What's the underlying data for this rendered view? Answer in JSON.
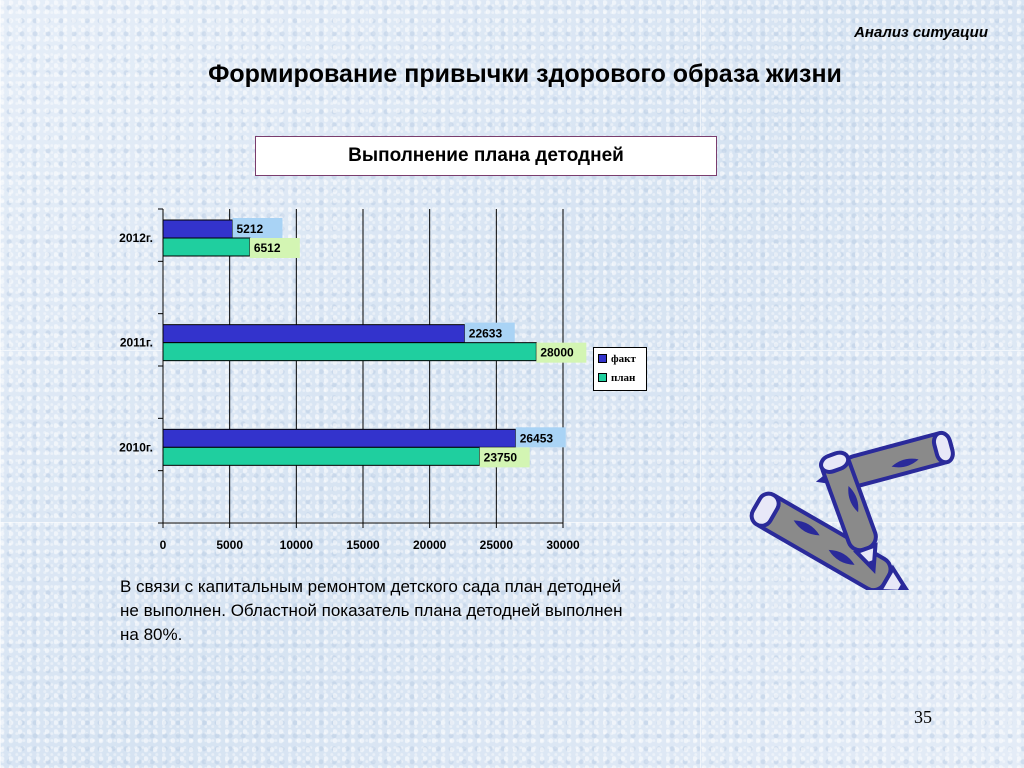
{
  "header": {
    "section_label": "Анализ ситуации",
    "title": "Формирование привычки здорового образа жизни"
  },
  "chart_data": {
    "type": "bar",
    "orientation": "horizontal",
    "title": "Выполнение плана детодней",
    "categories": [
      "2012г.",
      "2011г.",
      "2010г."
    ],
    "series": [
      {
        "name": "факт",
        "color": "#3333cc",
        "values": [
          5212,
          22633,
          26453
        ]
      },
      {
        "name": "план",
        "color": "#1fcf9f",
        "values": [
          6512,
          28000,
          23750
        ]
      }
    ],
    "xlim": [
      0,
      30000
    ],
    "x_ticks": [
      "0",
      "5000",
      "10000",
      "15000",
      "20000",
      "25000",
      "30000"
    ],
    "grid": true,
    "legend_position": "right",
    "label_colors": {
      "факт": "#a9d3f5",
      "план": "#d3f5b3"
    }
  },
  "body": {
    "text": "В связи с капитальным ремонтом детского сада план детодней не выполнен. Областной показатель плана детодней выполнен на 80%."
  },
  "footer": {
    "page_number": "35"
  },
  "decoration": {
    "icon": "crayons-icon"
  }
}
